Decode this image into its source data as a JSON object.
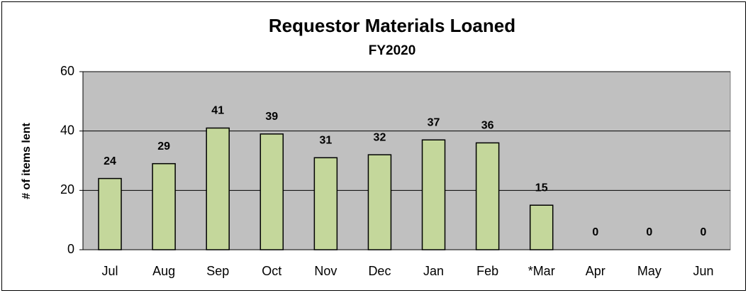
{
  "chart_data": {
    "type": "bar",
    "title": "Requestor Materials Loaned",
    "subtitle": "FY2020",
    "y_label": "# of items lent",
    "categories": [
      "Jul",
      "Aug",
      "Sep",
      "Oct",
      "Nov",
      "Dec",
      "Jan",
      "Feb",
      "*Mar",
      "Apr",
      "May",
      "Jun"
    ],
    "values": [
      24,
      29,
      41,
      39,
      31,
      32,
      37,
      36,
      15,
      0,
      0,
      0
    ],
    "color": "#c4d79b",
    "ylim": [
      0,
      60
    ],
    "yticks": [
      0,
      20,
      40,
      60
    ],
    "grid": true
  }
}
